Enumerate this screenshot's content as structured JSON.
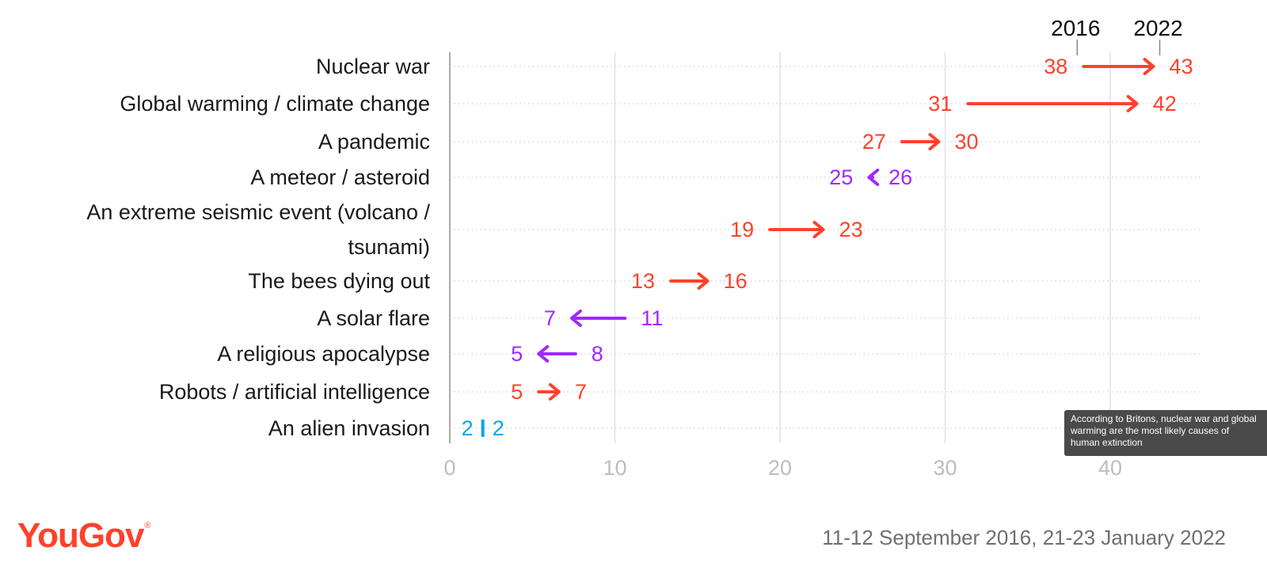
{
  "chart_data": {
    "type": "dumbbell-arrow",
    "series_labels": [
      "2016",
      "2022"
    ],
    "categories": [
      "Nuclear war",
      "Global warming / climate change",
      "A pandemic",
      "A meteor / asteroid",
      "An extreme seismic event (volcano / tsunami)",
      "The bees dying out",
      "A solar flare",
      "A religious apocalypse",
      "Robots / artificial intelligence",
      "An alien invasion"
    ],
    "values_2016": [
      38,
      31,
      27,
      26,
      19,
      13,
      11,
      8,
      5,
      2
    ],
    "values_2022": [
      43,
      42,
      30,
      25,
      23,
      16,
      7,
      5,
      7,
      2
    ],
    "xlim": [
      0,
      45
    ],
    "xticks": [
      0,
      10,
      20,
      30,
      40
    ],
    "grid": true,
    "colors": {
      "increase": "#ff412c",
      "decrease": "#9f29ff",
      "same": "#0aa6e8"
    }
  },
  "brand": {
    "logo": "YouGov",
    "logo_mark": "®"
  },
  "footnote": "11-12 September 2016, 21-23 January 2022",
  "tooltip": {
    "lines": [
      "According to Britons, nuclear war and global",
      "warming are the most likely causes of",
      "human extinction"
    ]
  }
}
